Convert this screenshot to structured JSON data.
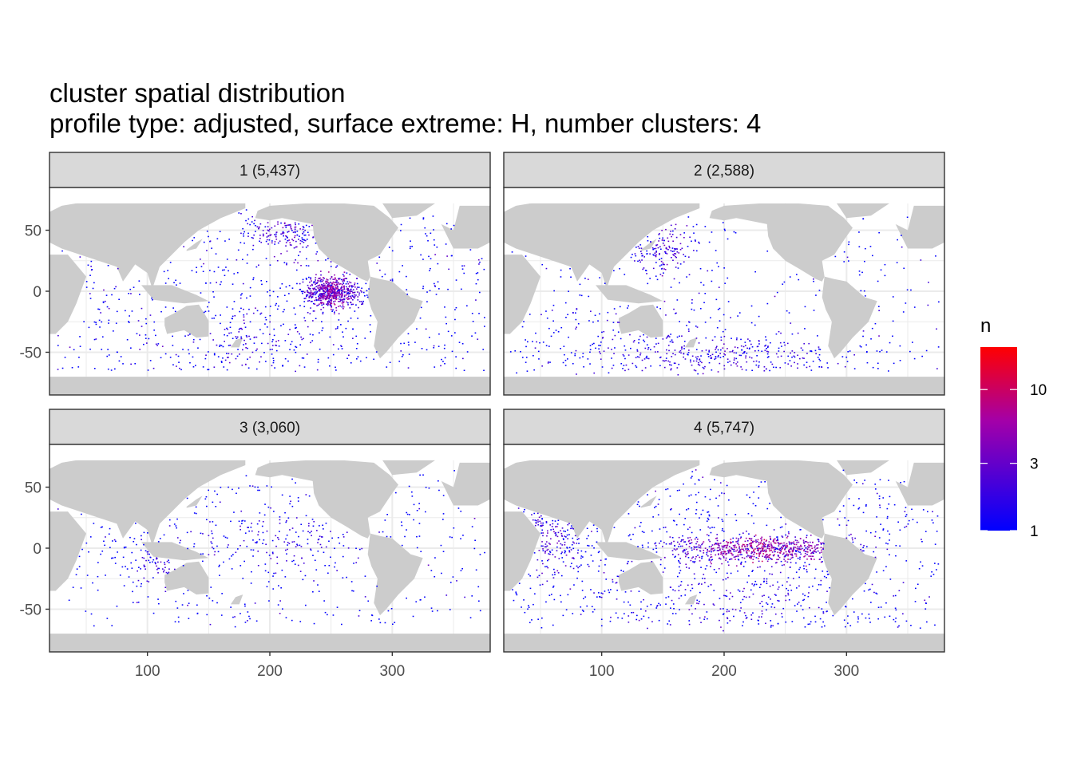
{
  "title": "cluster spatial distribution",
  "subtitle": "profile type: adjusted, surface extreme: H, number clusters: 4",
  "colors": {
    "land": "#cccccc",
    "panel_background": "#ffffff",
    "strip_background": "#d9d9d9",
    "grid": "#ebebeb",
    "panel_border": "#333333",
    "low": "#0000ff",
    "high": "#ff0000"
  },
  "chart_data": {
    "type": "heatmap",
    "x_ticks": [
      100,
      200,
      300
    ],
    "y_ticks": [
      50,
      0,
      -50
    ],
    "x_tick_labels": [
      "100",
      "200",
      "300"
    ],
    "y_tick_labels": [
      "50",
      "0",
      "-50"
    ],
    "xlim": [
      20,
      380
    ],
    "ylim": [
      -85,
      85
    ],
    "grid": true,
    "legend": {
      "title": "n",
      "scale": "log",
      "range": [
        1,
        20
      ],
      "breaks": [
        1,
        3,
        10
      ],
      "break_labels": [
        "1",
        "3",
        "10"
      ],
      "placement": "right"
    },
    "facets": [
      {
        "label": "1 (5,437)",
        "cluster": 1,
        "count": 5437,
        "hotspots": [
          [
            250,
            0,
            12,
            6,
            600,
            8
          ],
          [
            215,
            48,
            18,
            10,
            180,
            4
          ],
          [
            190,
            -40,
            40,
            15,
            150,
            2
          ]
        ]
      },
      {
        "label": "2 (2,588)",
        "cluster": 2,
        "count": 2588,
        "hotspots": [
          [
            150,
            35,
            15,
            10,
            150,
            3
          ],
          [
            200,
            -52,
            60,
            8,
            300,
            2
          ],
          [
            120,
            -40,
            60,
            15,
            150,
            1.5
          ]
        ]
      },
      {
        "label": "3 (3,060)",
        "cluster": 3,
        "count": 3060,
        "hotspots": [
          [
            110,
            -10,
            15,
            10,
            100,
            2
          ],
          [
            200,
            10,
            60,
            15,
            200,
            1.5
          ]
        ]
      },
      {
        "label": "4 (5,747)",
        "cluster": 4,
        "count": 5747,
        "hotspots": [
          [
            230,
            0,
            40,
            5,
            700,
            10
          ],
          [
            60,
            10,
            15,
            15,
            200,
            3
          ],
          [
            200,
            -30,
            60,
            20,
            250,
            1.8
          ]
        ]
      }
    ]
  }
}
